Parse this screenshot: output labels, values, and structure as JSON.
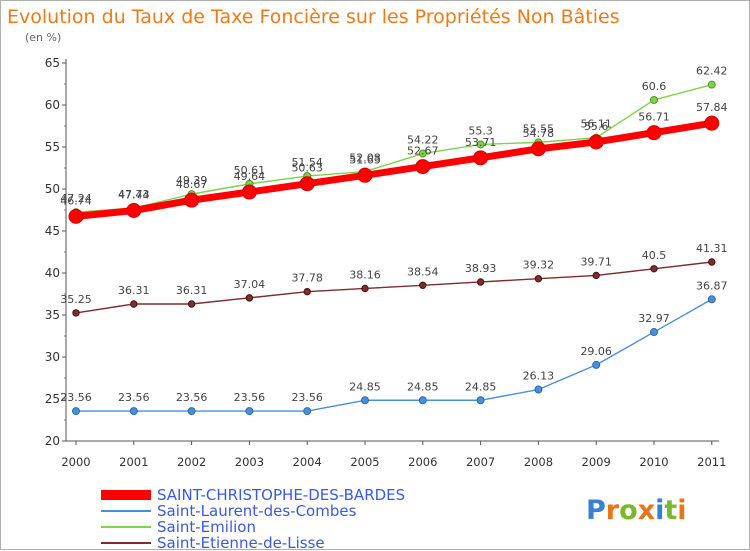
{
  "chart_data": {
    "type": "line",
    "title": "Evolution du Taux de Taxe Foncière sur les Propriétés Non Bâties",
    "subtitle": "(en %)",
    "xlabel": "",
    "ylabel": "(en %)",
    "ylim": [
      20,
      65
    ],
    "y_ticks": [
      20,
      25,
      30,
      35,
      40,
      45,
      50,
      55,
      60,
      65
    ],
    "categories": [
      "2000",
      "2001",
      "2002",
      "2003",
      "2004",
      "2005",
      "2006",
      "2007",
      "2008",
      "2009",
      "2010",
      "2011"
    ],
    "grid": false,
    "legend_position": "bottom-left",
    "series": [
      {
        "name": "SAINT-CHRISTOPHE-DES-BARDES",
        "color": "#ff0000",
        "values": [
          46.74,
          47.44,
          48.67,
          49.64,
          50.63,
          51.63,
          52.67,
          53.71,
          54.78,
          55.6,
          56.71,
          57.84
        ],
        "labels": [
          "46.74",
          "47.44",
          "48.67",
          "49.64",
          "50.63",
          "51.63",
          "52.67",
          "53.71",
          "54.78",
          "55.6",
          "56.71",
          "57.84"
        ]
      },
      {
        "name": "Saint-Laurent-des-Combes",
        "color": "#4a90d9",
        "values": [
          23.56,
          23.56,
          23.56,
          23.56,
          23.56,
          24.85,
          24.85,
          24.85,
          26.13,
          29.06,
          32.97,
          36.87
        ],
        "labels": [
          "23.56",
          "23.56",
          "23.56",
          "23.56",
          "23.56",
          "24.85",
          "24.85",
          "24.85",
          "26.13",
          "29.06",
          "32.97",
          "36.87"
        ]
      },
      {
        "name": "Saint-Emilion",
        "color": "#7ed34a",
        "values": [
          47.24,
          47.73,
          49.39,
          50.61,
          51.54,
          52.08,
          54.22,
          55.3,
          55.55,
          56.11,
          60.6,
          62.42
        ],
        "labels": [
          "47.24",
          "47.73",
          "49.39",
          "50.61",
          "51.54",
          "52.08",
          "54.22",
          "55.3",
          "55.55",
          "56.11",
          "60.6",
          "62.42"
        ]
      },
      {
        "name": "Saint-Etienne-de-Lisse",
        "color": "#7a2e2e",
        "values": [
          35.25,
          36.31,
          36.31,
          37.04,
          37.78,
          38.16,
          38.54,
          38.93,
          39.32,
          39.71,
          40.5,
          41.31
        ],
        "labels": [
          "35.25",
          "36.31",
          "36.31",
          "37.04",
          "37.78",
          "38.16",
          "38.54",
          "38.93",
          "39.32",
          "39.71",
          "40.5",
          "41.31"
        ]
      }
    ]
  },
  "legend": {
    "items": [
      {
        "label": "SAINT-CHRISTOPHE-DES-BARDES"
      },
      {
        "label": "Saint-Laurent-des-Combes"
      },
      {
        "label": "Saint-Emilion"
      },
      {
        "label": "Saint-Etienne-de-Lisse"
      }
    ]
  },
  "branding": {
    "logo_text": "Proxiti",
    "logo_letters": [
      "P",
      "r",
      "o",
      "x",
      "i",
      "t",
      "i"
    ],
    "logo_colors": [
      "#3a7fd1",
      "#e8751a",
      "#7ab82e",
      "#e8751a",
      "#3a7fd1",
      "#7ab82e",
      "#e8751a"
    ]
  }
}
